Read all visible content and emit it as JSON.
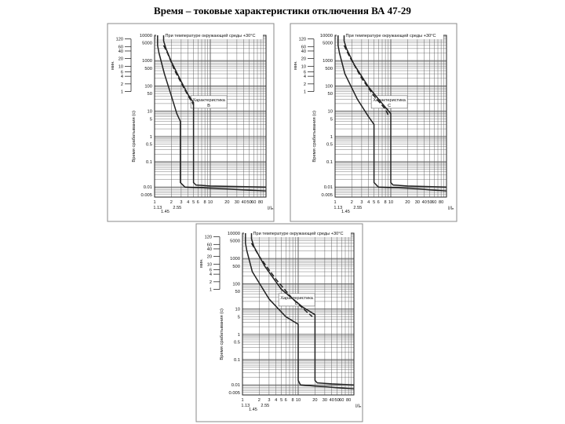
{
  "page": {
    "title": "Время – токовые характеристики отключения ВА 47-29"
  },
  "common": {
    "temperature_note": "При температуре окружающей среды +30°C",
    "y_label_seconds": "Время срабатывания (с)",
    "y_label_minutes": "мин.",
    "x_label": "I/Iₙ",
    "minute_ticks": [
      "120",
      "60",
      "40",
      "20",
      "10",
      "6",
      "4",
      "2",
      "1"
    ],
    "second_ticks": [
      "10000",
      "5000",
      "1000",
      "500",
      "100",
      "50",
      "10",
      "5",
      "1",
      "0.5",
      "0.1",
      "0.01",
      "0.005"
    ],
    "x_ticks": [
      "1",
      "1.13",
      "1.45",
      "2",
      "2.55",
      "3",
      "4",
      "5",
      "6",
      "8",
      "10",
      "20",
      "30",
      "40",
      "50",
      "60",
      "80"
    ],
    "colors": {
      "line": "#222222",
      "grid": "#555555",
      "frame": "#888888"
    }
  },
  "chart_data": [
    {
      "type": "line",
      "scale": "log-log",
      "annotation": [
        "Характеристика",
        "B"
      ],
      "xlim": [
        1,
        100
      ],
      "ylim": [
        0.004,
        10000
      ],
      "series": [
        {
          "style": "solid",
          "x": [
            1.13,
            1.13,
            1.2,
            1.5,
            2,
            2.5,
            2.9,
            2.9,
            3.5,
            10,
            100
          ],
          "y": [
            10000,
            4000,
            2000,
            300,
            40,
            8,
            4,
            0.015,
            0.01,
            0.009,
            0.007
          ]
        },
        {
          "style": "solid",
          "x": [
            1.45,
            1.45,
            1.6,
            2,
            3,
            4,
            5,
            5,
            5.5,
            10,
            100
          ],
          "y": [
            10000,
            6000,
            3000,
            900,
            150,
            45,
            22,
            0.015,
            0.012,
            0.011,
            0.01
          ]
        },
        {
          "style": "dashed",
          "x": [
            1.45,
            1.7,
            2.3,
            3.5,
            4.5,
            5
          ],
          "y": [
            4000,
            2000,
            400,
            70,
            26,
            18
          ]
        }
      ]
    },
    {
      "type": "line",
      "scale": "log-log",
      "annotation": [
        "Характеристика",
        "C"
      ],
      "xlim": [
        1,
        100
      ],
      "ylim": [
        0.004,
        10000
      ],
      "series": [
        {
          "style": "solid",
          "x": [
            1.13,
            1.13,
            1.2,
            1.5,
            2.5,
            4,
            5,
            5,
            6,
            20,
            100
          ],
          "y": [
            10000,
            4000,
            2000,
            300,
            30,
            6,
            3,
            0.015,
            0.01,
            0.009,
            0.007
          ]
        },
        {
          "style": "solid",
          "x": [
            1.45,
            1.45,
            1.6,
            2.2,
            4,
            7,
            10,
            10,
            11,
            20,
            100
          ],
          "y": [
            10000,
            6000,
            3000,
            700,
            90,
            20,
            8,
            0.015,
            0.012,
            0.011,
            0.01
          ]
        },
        {
          "style": "dashed",
          "x": [
            1.45,
            1.8,
            3,
            5,
            8,
            9
          ],
          "y": [
            4000,
            1500,
            200,
            40,
            12,
            7
          ]
        }
      ]
    },
    {
      "type": "line",
      "scale": "log-log",
      "annotation": [
        "Характеристика",
        "D"
      ],
      "xlim": [
        1,
        100
      ],
      "ylim": [
        0.004,
        10000
      ],
      "series": [
        {
          "style": "solid",
          "x": [
            1.13,
            1.13,
            1.2,
            1.5,
            3,
            6,
            10,
            10,
            11,
            20,
            100
          ],
          "y": [
            10000,
            4000,
            2000,
            300,
            25,
            5,
            2.5,
            0.015,
            0.01,
            0.009,
            0.007
          ]
        },
        {
          "style": "solid",
          "x": [
            1.45,
            1.45,
            1.6,
            2.5,
            5,
            12,
            20,
            20,
            22,
            40,
            100
          ],
          "y": [
            10000,
            6000,
            3000,
            500,
            60,
            12,
            6,
            0.015,
            0.012,
            0.011,
            0.01
          ]
        },
        {
          "style": "dashed",
          "x": [
            1.45,
            2,
            4,
            8,
            14,
            18
          ],
          "y": [
            4000,
            1200,
            150,
            25,
            8,
            5
          ]
        }
      ]
    }
  ]
}
